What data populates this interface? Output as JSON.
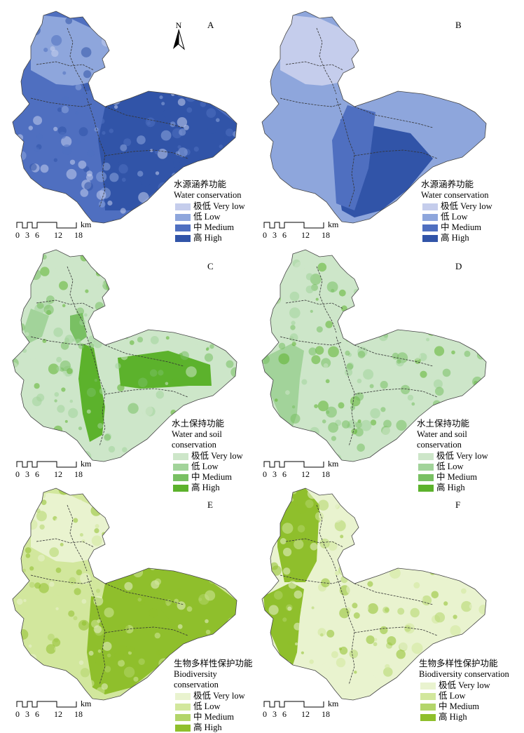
{
  "panels": [
    {
      "letter": "A",
      "title_cn": "水源涵养功能",
      "title_en": "Water conservation",
      "theme": "blue",
      "pattern": "A"
    },
    {
      "letter": "B",
      "title_cn": "水源涵养功能",
      "title_en": "Water conservation",
      "theme": "blue",
      "pattern": "B"
    },
    {
      "letter": "C",
      "title_cn": "水土保持功能",
      "title_en": "Water and soil conservation",
      "theme": "green",
      "pattern": "C"
    },
    {
      "letter": "D",
      "title_cn": "水土保持功能",
      "title_en": "Water and soil conservation",
      "theme": "green",
      "pattern": "D"
    },
    {
      "letter": "E",
      "title_cn": "生物多样性保护功能",
      "title_en": "Biodiversity conservation",
      "theme": "lime",
      "pattern": "E"
    },
    {
      "letter": "F",
      "title_cn": "生物多样性保护功能",
      "title_en": "Biodiversity conservation",
      "theme": "lime",
      "pattern": "F"
    }
  ],
  "legend_classes": [
    "极低 Very low",
    "低 Low",
    "中 Medium",
    "高 High"
  ],
  "palettes": {
    "blue": [
      "#c5cdec",
      "#8ea6dc",
      "#4f6fc0",
      "#3154a8"
    ],
    "green": [
      "#cde6c9",
      "#a2d39a",
      "#79c063",
      "#5cb22c"
    ],
    "lime": [
      "#e9f3cf",
      "#d2e79d",
      "#b3d56a",
      "#8fbf2c"
    ]
  },
  "north_label": "N",
  "scale": {
    "ticks": [
      "0",
      "3",
      "6",
      "12",
      "18"
    ],
    "unit": "km"
  }
}
